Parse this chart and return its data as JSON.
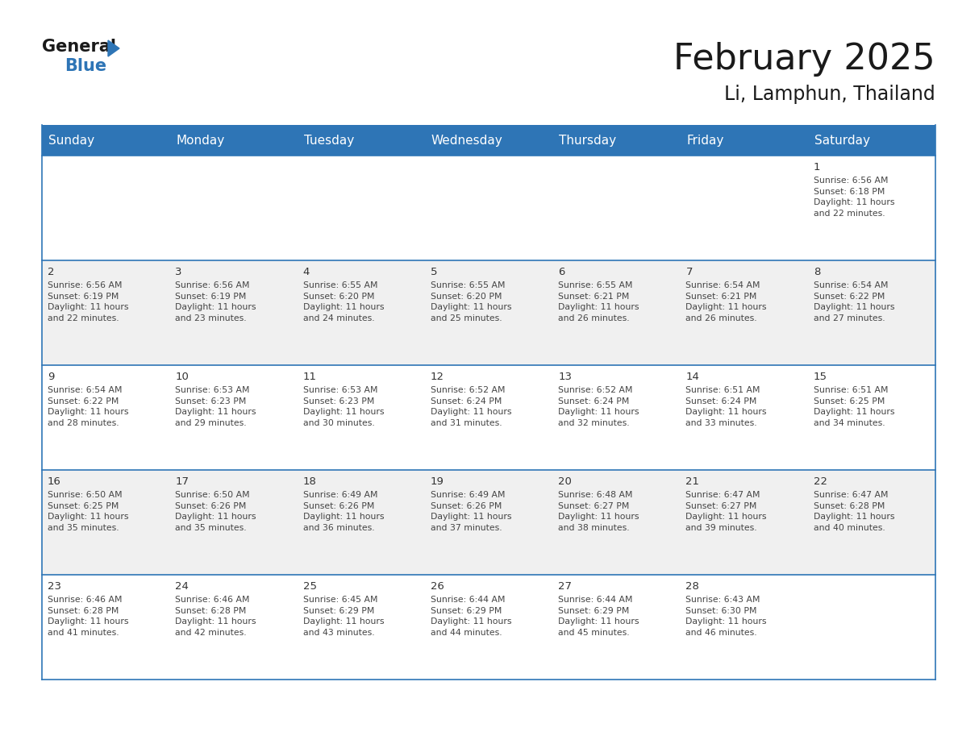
{
  "title": "February 2025",
  "subtitle": "Li, Lamphun, Thailand",
  "header_bg": "#2E75B6",
  "header_text_color": "#FFFFFF",
  "days_of_week": [
    "Sunday",
    "Monday",
    "Tuesday",
    "Wednesday",
    "Thursday",
    "Friday",
    "Saturday"
  ],
  "row_bg_even": "#FFFFFF",
  "row_bg_odd": "#F0F0F0",
  "cell_border_color": "#2E75B6",
  "day_num_color": "#333333",
  "info_text_color": "#444444",
  "calendar": [
    [
      {
        "day": "",
        "info": ""
      },
      {
        "day": "",
        "info": ""
      },
      {
        "day": "",
        "info": ""
      },
      {
        "day": "",
        "info": ""
      },
      {
        "day": "",
        "info": ""
      },
      {
        "day": "",
        "info": ""
      },
      {
        "day": "1",
        "info": "Sunrise: 6:56 AM\nSunset: 6:18 PM\nDaylight: 11 hours\nand 22 minutes."
      }
    ],
    [
      {
        "day": "2",
        "info": "Sunrise: 6:56 AM\nSunset: 6:19 PM\nDaylight: 11 hours\nand 22 minutes."
      },
      {
        "day": "3",
        "info": "Sunrise: 6:56 AM\nSunset: 6:19 PM\nDaylight: 11 hours\nand 23 minutes."
      },
      {
        "day": "4",
        "info": "Sunrise: 6:55 AM\nSunset: 6:20 PM\nDaylight: 11 hours\nand 24 minutes."
      },
      {
        "day": "5",
        "info": "Sunrise: 6:55 AM\nSunset: 6:20 PM\nDaylight: 11 hours\nand 25 minutes."
      },
      {
        "day": "6",
        "info": "Sunrise: 6:55 AM\nSunset: 6:21 PM\nDaylight: 11 hours\nand 26 minutes."
      },
      {
        "day": "7",
        "info": "Sunrise: 6:54 AM\nSunset: 6:21 PM\nDaylight: 11 hours\nand 26 minutes."
      },
      {
        "day": "8",
        "info": "Sunrise: 6:54 AM\nSunset: 6:22 PM\nDaylight: 11 hours\nand 27 minutes."
      }
    ],
    [
      {
        "day": "9",
        "info": "Sunrise: 6:54 AM\nSunset: 6:22 PM\nDaylight: 11 hours\nand 28 minutes."
      },
      {
        "day": "10",
        "info": "Sunrise: 6:53 AM\nSunset: 6:23 PM\nDaylight: 11 hours\nand 29 minutes."
      },
      {
        "day": "11",
        "info": "Sunrise: 6:53 AM\nSunset: 6:23 PM\nDaylight: 11 hours\nand 30 minutes."
      },
      {
        "day": "12",
        "info": "Sunrise: 6:52 AM\nSunset: 6:24 PM\nDaylight: 11 hours\nand 31 minutes."
      },
      {
        "day": "13",
        "info": "Sunrise: 6:52 AM\nSunset: 6:24 PM\nDaylight: 11 hours\nand 32 minutes."
      },
      {
        "day": "14",
        "info": "Sunrise: 6:51 AM\nSunset: 6:24 PM\nDaylight: 11 hours\nand 33 minutes."
      },
      {
        "day": "15",
        "info": "Sunrise: 6:51 AM\nSunset: 6:25 PM\nDaylight: 11 hours\nand 34 minutes."
      }
    ],
    [
      {
        "day": "16",
        "info": "Sunrise: 6:50 AM\nSunset: 6:25 PM\nDaylight: 11 hours\nand 35 minutes."
      },
      {
        "day": "17",
        "info": "Sunrise: 6:50 AM\nSunset: 6:26 PM\nDaylight: 11 hours\nand 35 minutes."
      },
      {
        "day": "18",
        "info": "Sunrise: 6:49 AM\nSunset: 6:26 PM\nDaylight: 11 hours\nand 36 minutes."
      },
      {
        "day": "19",
        "info": "Sunrise: 6:49 AM\nSunset: 6:26 PM\nDaylight: 11 hours\nand 37 minutes."
      },
      {
        "day": "20",
        "info": "Sunrise: 6:48 AM\nSunset: 6:27 PM\nDaylight: 11 hours\nand 38 minutes."
      },
      {
        "day": "21",
        "info": "Sunrise: 6:47 AM\nSunset: 6:27 PM\nDaylight: 11 hours\nand 39 minutes."
      },
      {
        "day": "22",
        "info": "Sunrise: 6:47 AM\nSunset: 6:28 PM\nDaylight: 11 hours\nand 40 minutes."
      }
    ],
    [
      {
        "day": "23",
        "info": "Sunrise: 6:46 AM\nSunset: 6:28 PM\nDaylight: 11 hours\nand 41 minutes."
      },
      {
        "day": "24",
        "info": "Sunrise: 6:46 AM\nSunset: 6:28 PM\nDaylight: 11 hours\nand 42 minutes."
      },
      {
        "day": "25",
        "info": "Sunrise: 6:45 AM\nSunset: 6:29 PM\nDaylight: 11 hours\nand 43 minutes."
      },
      {
        "day": "26",
        "info": "Sunrise: 6:44 AM\nSunset: 6:29 PM\nDaylight: 11 hours\nand 44 minutes."
      },
      {
        "day": "27",
        "info": "Sunrise: 6:44 AM\nSunset: 6:29 PM\nDaylight: 11 hours\nand 45 minutes."
      },
      {
        "day": "28",
        "info": "Sunrise: 6:43 AM\nSunset: 6:30 PM\nDaylight: 11 hours\nand 46 minutes."
      },
      {
        "day": "",
        "info": ""
      }
    ]
  ],
  "fig_bg": "#FFFFFF",
  "title_fontsize": 32,
  "subtitle_fontsize": 17,
  "header_fontsize": 11,
  "day_num_fontsize": 9.5,
  "info_fontsize": 7.8
}
